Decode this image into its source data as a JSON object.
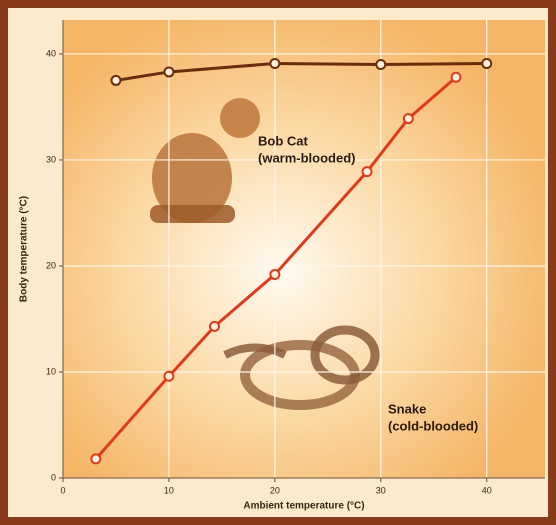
{
  "chart_data": {
    "type": "line",
    "x_label": "Ambient temperature (°C)",
    "y_label": "Body temperature (°C)",
    "xlim": [
      0,
      45.5
    ],
    "xticks": [
      0,
      10,
      20,
      30,
      40
    ],
    "ylim": [
      0,
      43.2
    ],
    "yticks": [
      0,
      10,
      20,
      30,
      40
    ],
    "grid": true,
    "series": [
      {
        "color": "#6b2c10",
        "x": [
          5,
          10,
          20,
          30,
          40
        ],
        "values": [
          37.5,
          38.3,
          39.1,
          39.0,
          39.1
        ]
      },
      {
        "color": "#e2391c",
        "x": [
          3.1,
          10,
          14.3,
          20,
          28.7,
          32.6,
          37.1
        ],
        "values": [
          1.8,
          9.6,
          14.3,
          19.2,
          28.9,
          33.9,
          37.8
        ]
      }
    ],
    "annotations": [
      {
        "lines": [
          "Bob Cat",
          "(warm-blooded)"
        ]
      },
      {
        "lines": [
          "Snake",
          "(cold-blooded)"
        ]
      }
    ]
  }
}
